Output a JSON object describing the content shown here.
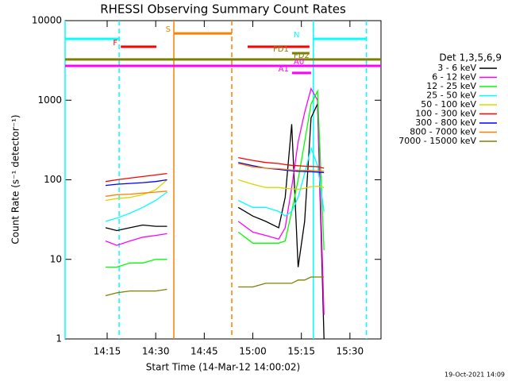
{
  "chart_data": {
    "type": "line",
    "title": "RHESSI Observing Summary Count Rates",
    "xlabel": "Start Time (14-Mar-12 14:00:02)",
    "ylabel": "Count Rate (s⁻¹ detector⁻¹)",
    "legend_title": "Det 1,3,5,6,9",
    "footer": "19-Oct-2021 14:09",
    "log_y": true,
    "xlim": [
      2,
      99.6
    ],
    "xticks": [
      {
        "value": 15,
        "label": "14:15"
      },
      {
        "value": 30,
        "label": "14:30"
      },
      {
        "value": 45,
        "label": "14:45"
      },
      {
        "value": 60,
        "label": "15:00"
      },
      {
        "value": 75,
        "label": "15:15"
      },
      {
        "value": 90,
        "label": "15:30"
      }
    ],
    "ylim": [
      1,
      10000
    ],
    "yticks": [
      1,
      10,
      100,
      1000,
      10000
    ],
    "x": [
      14.5,
      18,
      22,
      26,
      30,
      33.5,
      44,
      55.5,
      60,
      64,
      68,
      70,
      72,
      74,
      76,
      78,
      80,
      82
    ],
    "series": [
      {
        "name": "3 - 6 keV",
        "color": "#000000",
        "values": [
          25,
          23,
          25,
          27,
          26,
          26,
          null,
          45,
          35,
          30,
          25,
          60,
          500,
          8,
          30,
          600,
          900,
          1
        ]
      },
      {
        "name": "6 - 12 keV",
        "color": "#ff00ff",
        "values": [
          17,
          15,
          17,
          19,
          20,
          21,
          null,
          30,
          22,
          20,
          18,
          25,
          80,
          300,
          700,
          1400,
          1000,
          2
        ]
      },
      {
        "name": "12 - 25 keV",
        "color": "#00ff00",
        "values": [
          8,
          8,
          9,
          9,
          10,
          10,
          null,
          22,
          16,
          16,
          16,
          17,
          40,
          100,
          300,
          900,
          1300,
          13
        ]
      },
      {
        "name": "25 - 50 keV",
        "color": "#00ffff",
        "values": [
          30,
          33,
          38,
          45,
          55,
          70,
          null,
          55,
          45,
          45,
          40,
          35,
          40,
          60,
          120,
          250,
          150,
          40
        ]
      },
      {
        "name": "50 - 100 keV",
        "color": "#d8d800",
        "values": [
          55,
          58,
          60,
          65,
          75,
          100,
          null,
          100,
          88,
          80,
          80,
          78,
          77,
          76,
          78,
          82,
          83,
          80
        ]
      },
      {
        "name": "100 - 300 keV",
        "color": "#ff0000",
        "values": [
          95,
          100,
          105,
          110,
          115,
          120,
          null,
          190,
          175,
          165,
          160,
          155,
          152,
          150,
          148,
          147,
          146,
          140
        ]
      },
      {
        "name": "300 - 800 keV",
        "color": "#0000ff",
        "values": [
          85,
          88,
          90,
          92,
          95,
          100,
          null,
          165,
          150,
          140,
          135,
          132,
          130,
          128,
          127,
          126,
          125,
          123
        ]
      },
      {
        "name": "800 - 7000 keV",
        "color": "#ff8000",
        "values": [
          62,
          65,
          66,
          68,
          70,
          72,
          null,
          160,
          145,
          140,
          138,
          135,
          133,
          132,
          131,
          131,
          130,
          128
        ]
      },
      {
        "name": "7000 - 15000 keV",
        "color": "#808000",
        "values": [
          3.5,
          3.8,
          4,
          4,
          4,
          4.2,
          null,
          4.5,
          4.5,
          5,
          5,
          5,
          5,
          5.5,
          5.5,
          6,
          6,
          6
        ]
      }
    ],
    "annotations": [
      {
        "label": "N",
        "x0": 2,
        "x1": 18.7,
        "y": 5900,
        "color": "#00ffff"
      },
      {
        "label": "F",
        "x0": 19.2,
        "x1": 30.2,
        "y": 4700,
        "color": "#ff0000"
      },
      {
        "label": "S",
        "x0": 35.6,
        "x1": 53.5,
        "y": 6900,
        "color": "#ff8000"
      },
      {
        "label": "FD1",
        "x0": 72.1,
        "x1": 77.5,
        "y": 3900,
        "color": "#808000"
      },
      {
        "label": "FD2",
        "x0": 2,
        "x1": 99.6,
        "y": 3250,
        "color": "#808000"
      },
      {
        "label": "A0",
        "x0": 2,
        "x1": 99.6,
        "y": 2700,
        "color": "#ff00ff"
      },
      {
        "label": "A1",
        "x0": 72.1,
        "x1": 78,
        "y": 2200,
        "color": "#ff00ff"
      }
    ],
    "extra_segments": [
      {
        "x0": 78.7,
        "x1": 95.1,
        "y": 5900,
        "color": "#00ffff"
      },
      {
        "x0": 58.4,
        "x1": 77.5,
        "y": 4700,
        "color": "#ff0000"
      }
    ],
    "markers": [
      {
        "x": 2,
        "color": "#00ffff",
        "dashed": false
      },
      {
        "x": 18.7,
        "color": "#00ffff",
        "dashed": true
      },
      {
        "x": 35.6,
        "color": "#ff8000",
        "dashed": false
      },
      {
        "x": 53.5,
        "color": "#ff8000",
        "dashed": true
      },
      {
        "x": 78.7,
        "color": "#00ffff",
        "dashed": false
      },
      {
        "x": 95.1,
        "color": "#00ffff",
        "dashed": true
      }
    ]
  }
}
